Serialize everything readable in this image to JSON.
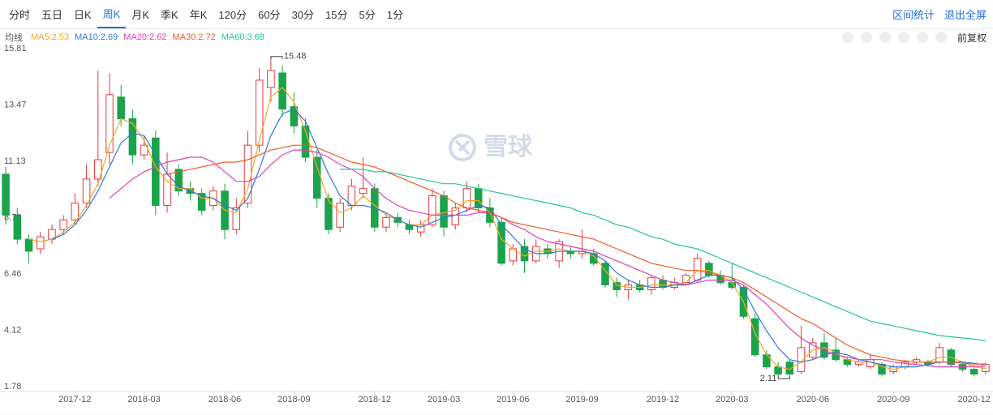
{
  "toolbar": {
    "periods": [
      "分时",
      "五日",
      "日K",
      "周K",
      "月K",
      "季K",
      "年K",
      "120分",
      "60分",
      "30分",
      "15分",
      "5分",
      "1分"
    ],
    "active": 3,
    "actions": [
      "区间统计",
      "退出全屏"
    ]
  },
  "indicator_bar": {
    "label": "均线",
    "adjust": "前复权"
  },
  "watermark": "雪球",
  "chart_data": {
    "type": "candlestick",
    "up_color": "#e4393c",
    "down_color": "#1aa34a",
    "ylim": [
      1.78,
      15.81
    ],
    "yticks": [
      15.81,
      13.47,
      11.13,
      8.79,
      6.46,
      4.12,
      1.78
    ],
    "grid": false,
    "high_label": 15.48,
    "low_label": 2.11,
    "categories": [
      null,
      null,
      null,
      null,
      null,
      null,
      "2017-12",
      null,
      null,
      null,
      null,
      null,
      "2018-03",
      null,
      null,
      null,
      null,
      null,
      null,
      "2018-06",
      null,
      null,
      null,
      null,
      null,
      "2018-09",
      null,
      null,
      null,
      null,
      null,
      null,
      "2018-12",
      null,
      null,
      null,
      null,
      null,
      "2019-03",
      null,
      null,
      null,
      null,
      null,
      "2019-06",
      null,
      null,
      null,
      null,
      null,
      "2019-09",
      null,
      null,
      null,
      null,
      null,
      null,
      "2019-12",
      null,
      null,
      null,
      null,
      null,
      "2020-03",
      null,
      null,
      null,
      null,
      null,
      null,
      "2020-06",
      null,
      null,
      null,
      null,
      null,
      null,
      "2020-09",
      null,
      null,
      null,
      null,
      null,
      null,
      "2020-12",
      null
    ],
    "ohlc": [
      [
        10.6,
        10.9,
        8.5,
        8.9
      ],
      [
        8.9,
        9.2,
        7.7,
        7.9
      ],
      [
        7.9,
        8.1,
        6.9,
        7.4
      ],
      [
        7.5,
        8.2,
        7.3,
        8.0
      ],
      [
        7.9,
        8.5,
        7.7,
        8.3
      ],
      [
        8.3,
        8.9,
        8.1,
        8.7
      ],
      [
        8.7,
        9.8,
        8.5,
        9.4
      ],
      [
        9.4,
        11.0,
        9.2,
        10.4
      ],
      [
        10.4,
        14.9,
        10.1,
        11.2
      ],
      [
        11.5,
        14.8,
        11.0,
        13.9
      ],
      [
        13.8,
        14.3,
        12.6,
        12.9
      ],
      [
        12.9,
        13.3,
        11.0,
        11.4
      ],
      [
        11.4,
        12.2,
        11.2,
        11.8
      ],
      [
        12.1,
        12.4,
        8.9,
        9.3
      ],
      [
        9.3,
        11.5,
        9.0,
        10.6
      ],
      [
        10.8,
        11.0,
        9.7,
        9.9
      ],
      [
        10.0,
        10.3,
        9.5,
        9.8
      ],
      [
        9.8,
        10.0,
        8.9,
        9.1
      ],
      [
        9.3,
        10.1,
        9.1,
        9.9
      ],
      [
        9.9,
        10.2,
        7.9,
        8.3
      ],
      [
        8.3,
        9.6,
        8.1,
        9.2
      ],
      [
        9.4,
        12.4,
        9.2,
        11.8
      ],
      [
        11.8,
        15.0,
        11.5,
        14.5
      ],
      [
        14.2,
        15.48,
        13.6,
        14.9
      ],
      [
        14.8,
        15.1,
        13.0,
        13.3
      ],
      [
        13.4,
        14.0,
        12.3,
        12.6
      ],
      [
        12.6,
        12.9,
        11.1,
        11.3
      ],
      [
        11.3,
        11.6,
        9.2,
        9.6
      ],
      [
        9.6,
        9.8,
        8.1,
        8.3
      ],
      [
        8.4,
        9.6,
        8.2,
        9.4
      ],
      [
        9.3,
        10.4,
        9.1,
        10.1
      ],
      [
        9.8,
        11.3,
        9.6,
        10.0
      ],
      [
        10.0,
        10.2,
        8.2,
        8.4
      ],
      [
        8.4,
        9.0,
        8.2,
        8.8
      ],
      [
        8.8,
        9.0,
        8.4,
        8.6
      ],
      [
        8.5,
        8.7,
        8.1,
        8.3
      ],
      [
        8.2,
        8.7,
        8.0,
        8.5
      ],
      [
        8.5,
        10.0,
        8.4,
        9.7
      ],
      [
        9.7,
        9.9,
        8.0,
        8.4
      ],
      [
        8.5,
        9.4,
        8.3,
        9.2
      ],
      [
        9.2,
        10.3,
        9.0,
        10.0
      ],
      [
        10.0,
        10.2,
        9.0,
        9.2
      ],
      [
        9.2,
        9.6,
        8.4,
        8.6
      ],
      [
        8.6,
        8.8,
        6.8,
        6.9
      ],
      [
        7.0,
        7.7,
        6.8,
        7.5
      ],
      [
        7.6,
        7.9,
        6.5,
        7.0
      ],
      [
        7.0,
        7.9,
        6.9,
        7.6
      ],
      [
        7.5,
        7.7,
        7.1,
        7.3
      ],
      [
        7.0,
        7.9,
        6.7,
        7.8
      ],
      [
        7.4,
        7.6,
        7.1,
        7.3
      ],
      [
        7.3,
        8.3,
        7.1,
        7.4
      ],
      [
        7.3,
        7.5,
        6.8,
        6.9
      ],
      [
        6.9,
        7.0,
        5.9,
        6.0
      ],
      [
        6.1,
        6.3,
        5.5,
        5.8
      ],
      [
        5.8,
        6.2,
        5.4,
        6.0
      ],
      [
        6.0,
        6.2,
        5.7,
        5.8
      ],
      [
        5.8,
        6.4,
        5.6,
        6.3
      ],
      [
        6.2,
        6.4,
        5.8,
        5.9
      ],
      [
        5.9,
        6.3,
        5.8,
        6.1
      ],
      [
        6.1,
        6.5,
        6.0,
        6.4
      ],
      [
        6.2,
        7.3,
        6.1,
        7.1
      ],
      [
        6.9,
        7.0,
        6.3,
        6.4
      ],
      [
        6.4,
        6.6,
        6.0,
        6.1
      ],
      [
        6.1,
        6.9,
        5.8,
        5.9
      ],
      [
        5.9,
        6.0,
        4.6,
        4.7
      ],
      [
        4.6,
        4.8,
        3.0,
        3.1
      ],
      [
        3.1,
        3.3,
        2.5,
        2.6
      ],
      [
        2.6,
        2.8,
        2.2,
        2.3
      ],
      [
        2.8,
        2.9,
        2.11,
        2.3
      ],
      [
        2.4,
        4.3,
        2.3,
        3.4
      ],
      [
        3.0,
        3.8,
        2.9,
        3.6
      ],
      [
        3.6,
        4.0,
        2.9,
        3.0
      ],
      [
        3.3,
        3.8,
        2.8,
        2.9
      ],
      [
        2.9,
        3.0,
        2.6,
        2.7
      ],
      [
        2.7,
        2.9,
        2.6,
        2.8
      ],
      [
        2.6,
        3.1,
        2.5,
        2.9
      ],
      [
        2.7,
        2.8,
        2.2,
        2.3
      ],
      [
        2.4,
        2.7,
        2.3,
        2.6
      ],
      [
        2.6,
        2.9,
        2.5,
        2.8
      ],
      [
        2.8,
        3.0,
        2.7,
        2.9
      ],
      [
        2.8,
        2.9,
        2.6,
        2.7
      ],
      [
        2.8,
        3.6,
        2.7,
        3.4
      ],
      [
        3.3,
        3.4,
        2.6,
        2.7
      ],
      [
        2.7,
        2.8,
        2.4,
        2.5
      ],
      [
        2.5,
        2.6,
        2.2,
        2.3
      ],
      [
        2.4,
        2.8,
        2.3,
        2.7
      ]
    ],
    "series": [
      {
        "name": "MA5:2.53",
        "color": "#f5a623",
        "values": [
          null,
          null,
          7.9,
          7.8,
          7.9,
          8.2,
          8.6,
          9.3,
          10.2,
          11.8,
          12.9,
          12.7,
          12.0,
          10.9,
          10.3,
          10.0,
          10.0,
          9.6,
          9.6,
          9.1,
          9.0,
          10.0,
          12.0,
          13.8,
          14.2,
          13.6,
          12.4,
          10.9,
          9.5,
          9.0,
          9.2,
          9.7,
          9.3,
          8.9,
          8.7,
          8.5,
          8.5,
          8.9,
          9.0,
          9.1,
          9.5,
          9.5,
          9.0,
          7.9,
          7.5,
          7.2,
          7.4,
          7.4,
          7.5,
          7.4,
          7.4,
          7.2,
          6.6,
          6.0,
          5.9,
          5.9,
          6.0,
          6.0,
          6.0,
          6.1,
          6.6,
          6.6,
          6.4,
          6.1,
          5.3,
          4.0,
          3.1,
          2.6,
          2.5,
          2.8,
          3.3,
          3.4,
          3.2,
          2.9,
          2.8,
          2.8,
          2.6,
          2.5,
          2.6,
          2.8,
          2.8,
          3.0,
          3.0,
          2.8,
          2.6,
          2.53
        ]
      },
      {
        "name": "MA10:2.69",
        "color": "#2f7ad4",
        "values": [
          null,
          null,
          null,
          null,
          7.9,
          8.1,
          8.5,
          9.1,
          9.9,
          10.9,
          11.9,
          12.3,
          12.2,
          11.4,
          10.6,
          10.1,
          9.9,
          9.7,
          9.6,
          9.3,
          9.1,
          9.6,
          10.8,
          12.2,
          13.1,
          13.3,
          12.8,
          11.7,
          10.6,
          9.7,
          9.3,
          9.3,
          9.2,
          9.0,
          8.7,
          8.5,
          8.4,
          8.6,
          8.8,
          8.9,
          9.1,
          9.3,
          9.2,
          8.5,
          8.0,
          7.5,
          7.3,
          7.3,
          7.4,
          7.4,
          7.4,
          7.3,
          7.0,
          6.5,
          6.2,
          6.0,
          5.9,
          5.9,
          6.0,
          6.0,
          6.2,
          6.4,
          6.4,
          6.3,
          5.8,
          4.9,
          4.1,
          3.4,
          2.9,
          2.8,
          2.9,
          3.1,
          3.2,
          3.1,
          2.9,
          2.8,
          2.7,
          2.6,
          2.6,
          2.6,
          2.7,
          2.8,
          2.8,
          2.8,
          2.75,
          2.69
        ]
      },
      {
        "name": "MA20:2.62",
        "color": "#e23fb4",
        "values": [
          null,
          null,
          null,
          null,
          null,
          null,
          null,
          null,
          null,
          9.6,
          10.0,
          10.4,
          10.7,
          10.9,
          11.1,
          11.2,
          11.3,
          11.3,
          11.1,
          10.7,
          10.3,
          10.3,
          10.5,
          11.0,
          11.4,
          11.6,
          11.6,
          11.5,
          11.3,
          11.0,
          10.8,
          10.5,
          10.0,
          9.6,
          9.3,
          9.1,
          9.0,
          8.9,
          8.9,
          8.9,
          8.9,
          9.0,
          9.0,
          8.8,
          8.5,
          8.3,
          8.0,
          7.8,
          7.7,
          7.6,
          7.5,
          7.4,
          7.2,
          7.0,
          6.8,
          6.6,
          6.4,
          6.2,
          6.1,
          6.0,
          6.1,
          6.2,
          6.2,
          6.2,
          6.0,
          5.6,
          5.2,
          4.7,
          4.2,
          3.8,
          3.5,
          3.3,
          3.1,
          3.0,
          2.9,
          2.9,
          2.9,
          2.8,
          2.75,
          2.7,
          2.65,
          2.6,
          2.6,
          2.6,
          2.62,
          2.62
        ]
      },
      {
        "name": "MA30:2.72",
        "color": "#f05a28",
        "values": [
          null,
          null,
          null,
          null,
          null,
          null,
          null,
          null,
          null,
          null,
          null,
          null,
          null,
          null,
          10.6,
          10.7,
          10.8,
          10.9,
          11.0,
          11.1,
          11.1,
          11.2,
          11.4,
          11.6,
          11.7,
          11.8,
          11.8,
          11.7,
          11.5,
          11.3,
          11.1,
          11.0,
          10.9,
          10.7,
          10.5,
          10.3,
          10.1,
          9.9,
          9.7,
          9.4,
          9.2,
          9.1,
          9.0,
          8.8,
          8.6,
          8.5,
          8.4,
          8.3,
          8.2,
          8.1,
          8.0,
          7.9,
          7.7,
          7.5,
          7.3,
          7.1,
          6.9,
          6.8,
          6.7,
          6.6,
          6.6,
          6.5,
          6.4,
          6.3,
          6.1,
          5.8,
          5.5,
          5.2,
          4.9,
          4.6,
          4.4,
          4.1,
          3.8,
          3.5,
          3.3,
          3.1,
          3.0,
          2.9,
          2.85,
          2.8,
          2.8,
          2.8,
          2.8,
          2.75,
          2.72,
          2.72
        ]
      },
      {
        "name": "MA60:3.68",
        "color": "#25c497",
        "values": [
          null,
          null,
          null,
          null,
          null,
          null,
          null,
          null,
          null,
          null,
          null,
          null,
          null,
          null,
          null,
          null,
          null,
          null,
          null,
          null,
          null,
          null,
          null,
          null,
          null,
          null,
          null,
          null,
          null,
          10.8,
          10.8,
          10.8,
          10.7,
          10.7,
          10.6,
          10.5,
          10.4,
          10.3,
          10.2,
          10.2,
          10.1,
          10.0,
          9.9,
          9.8,
          9.7,
          9.6,
          9.5,
          9.4,
          9.3,
          9.2,
          9.0,
          8.9,
          8.7,
          8.5,
          8.4,
          8.2,
          8.0,
          7.9,
          7.7,
          7.6,
          7.5,
          7.3,
          7.1,
          6.9,
          6.7,
          6.5,
          6.3,
          6.1,
          5.9,
          5.7,
          5.5,
          5.3,
          5.1,
          4.9,
          4.7,
          4.5,
          4.4,
          4.3,
          4.2,
          4.1,
          4.0,
          3.9,
          3.85,
          3.8,
          3.75,
          3.68
        ]
      }
    ]
  }
}
